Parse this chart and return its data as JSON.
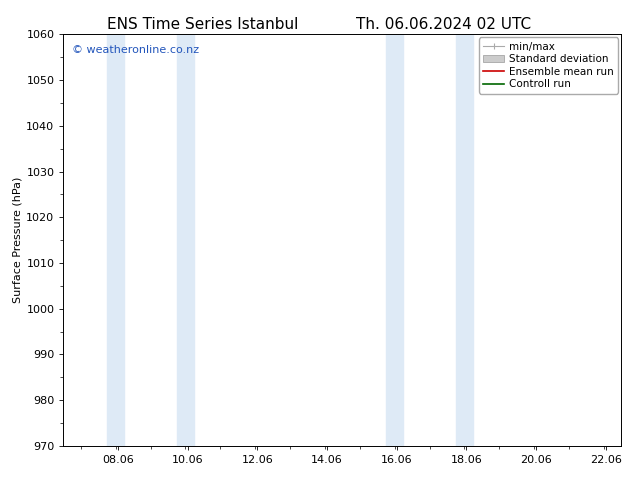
{
  "title_left": "ENS Time Series Istanbul",
  "title_right": "Th. 06.06.2024 02 UTC",
  "ylabel": "Surface Pressure (hPa)",
  "ylim": [
    970,
    1060
  ],
  "yticks": [
    970,
    980,
    990,
    1000,
    1010,
    1020,
    1030,
    1040,
    1050,
    1060
  ],
  "xlim_start": 6.5,
  "xlim_end": 22.5,
  "xtick_positions": [
    8.06,
    10.06,
    12.06,
    14.06,
    16.06,
    18.06,
    20.06,
    22.06
  ],
  "xtick_labels": [
    "08.06",
    "10.06",
    "12.06",
    "14.06",
    "16.06",
    "18.06",
    "20.06",
    "22.06"
  ],
  "shaded_bands": [
    {
      "x_start": 7.75,
      "x_end": 8.25,
      "color": "#deeaf6"
    },
    {
      "x_start": 9.75,
      "x_end": 10.25,
      "color": "#deeaf6"
    },
    {
      "x_start": 15.75,
      "x_end": 16.25,
      "color": "#deeaf6"
    },
    {
      "x_start": 17.75,
      "x_end": 18.25,
      "color": "#deeaf6"
    }
  ],
  "watermark_text": "© weatheronline.co.nz",
  "watermark_color": "#2255bb",
  "watermark_fontsize": 8,
  "background_color": "#ffffff",
  "plot_bg_color": "#ffffff",
  "legend_entries": [
    {
      "label": "min/max",
      "color": "#aaaaaa",
      "type": "minmax"
    },
    {
      "label": "Standard deviation",
      "color": "#cccccc",
      "type": "patch"
    },
    {
      "label": "Ensemble mean run",
      "color": "#cc0000",
      "type": "line",
      "linewidth": 1.2
    },
    {
      "label": "Controll run",
      "color": "#006600",
      "type": "line",
      "linewidth": 1.2
    }
  ],
  "font_family": "DejaVu Sans",
  "title_fontsize": 11,
  "axis_fontsize": 8,
  "tick_fontsize": 8,
  "legend_fontsize": 7.5
}
